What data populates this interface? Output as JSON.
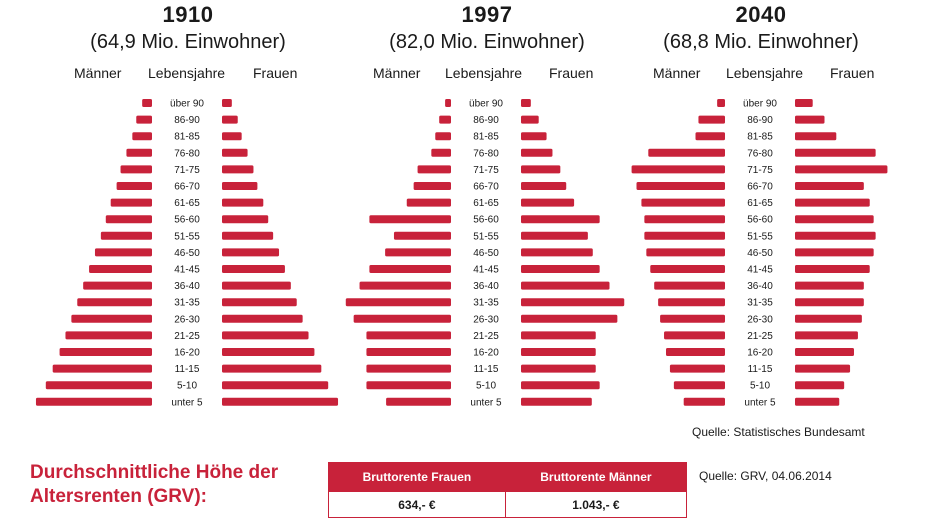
{
  "labels": {
    "men": "Männer",
    "age": "Lebensjahre",
    "women": "Frauen"
  },
  "chart_data": [
    {
      "type": "bar",
      "title": "1910",
      "subtitle": "(64,9 Mio. Einwohner)",
      "categories": [
        "über 90",
        "86-90",
        "81-85",
        "76-80",
        "71-75",
        "66-70",
        "61-65",
        "56-60",
        "51-55",
        "46-50",
        "41-45",
        "36-40",
        "31-35",
        "26-30",
        "21-25",
        "16-20",
        "11-15",
        "5-10",
        "unter 5"
      ],
      "series": [
        {
          "name": "Männer",
          "values": [
            10,
            16,
            20,
            26,
            32,
            36,
            42,
            47,
            52,
            58,
            64,
            70,
            76,
            82,
            88,
            94,
            101,
            108,
            118
          ]
        },
        {
          "name": "Frauen",
          "values": [
            10,
            16,
            20,
            26,
            32,
            36,
            42,
            47,
            52,
            58,
            64,
            70,
            76,
            82,
            88,
            94,
            101,
            108,
            118
          ]
        }
      ],
      "xlim": [
        0,
        120
      ]
    },
    {
      "type": "bar",
      "title": "1997",
      "subtitle": "(82,0 Mio. Einwohner)",
      "categories": [
        "über 90",
        "86-90",
        "81-85",
        "76-80",
        "71-75",
        "66-70",
        "61-65",
        "56-60",
        "51-55",
        "46-50",
        "41-45",
        "36-40",
        "31-35",
        "26-30",
        "21-25",
        "16-20",
        "11-15",
        "5-10",
        "unter 5"
      ],
      "series": [
        {
          "name": "Männer",
          "values": [
            6,
            12,
            16,
            20,
            34,
            38,
            45,
            83,
            58,
            67,
            83,
            93,
            107,
            99,
            86,
            86,
            86,
            86,
            66
          ]
        },
        {
          "name": "Frauen",
          "values": [
            10,
            18,
            26,
            32,
            40,
            46,
            54,
            80,
            68,
            73,
            80,
            90,
            105,
            98,
            76,
            76,
            76,
            80,
            72
          ]
        }
      ],
      "xlim": [
        0,
        120
      ]
    },
    {
      "type": "bar",
      "title": "2040",
      "subtitle": "(68,8 Mio. Einwohner)",
      "categories": [
        "über 90",
        "86-90",
        "81-85",
        "76-80",
        "71-75",
        "66-70",
        "61-65",
        "56-60",
        "51-55",
        "46-50",
        "41-45",
        "36-40",
        "31-35",
        "26-30",
        "21-25",
        "16-20",
        "11-15",
        "5-10",
        "unter 5"
      ],
      "series": [
        {
          "name": "Männer",
          "values": [
            8,
            27,
            30,
            78,
            95,
            90,
            85,
            82,
            82,
            80,
            76,
            72,
            68,
            66,
            62,
            60,
            56,
            52,
            42
          ]
        },
        {
          "name": "Frauen",
          "values": [
            18,
            30,
            42,
            82,
            94,
            70,
            76,
            80,
            82,
            80,
            76,
            70,
            70,
            68,
            64,
            60,
            56,
            50,
            45
          ]
        }
      ],
      "xlim": [
        0,
        120
      ]
    }
  ],
  "sources": {
    "destatis": "Quelle: Statistisches Bundesamt",
    "grv": "Quelle: GRV, 04.06.2014"
  },
  "rente": {
    "title_line1": "Durchschnittliche Höhe der",
    "title_line2": "Altersrenten (GRV):",
    "headers": [
      "Bruttorente Frauen",
      "Bruttorente Männer"
    ],
    "values": [
      "634,- €",
      "1.043,- €"
    ]
  },
  "colors": {
    "bar": "#c8223a"
  }
}
